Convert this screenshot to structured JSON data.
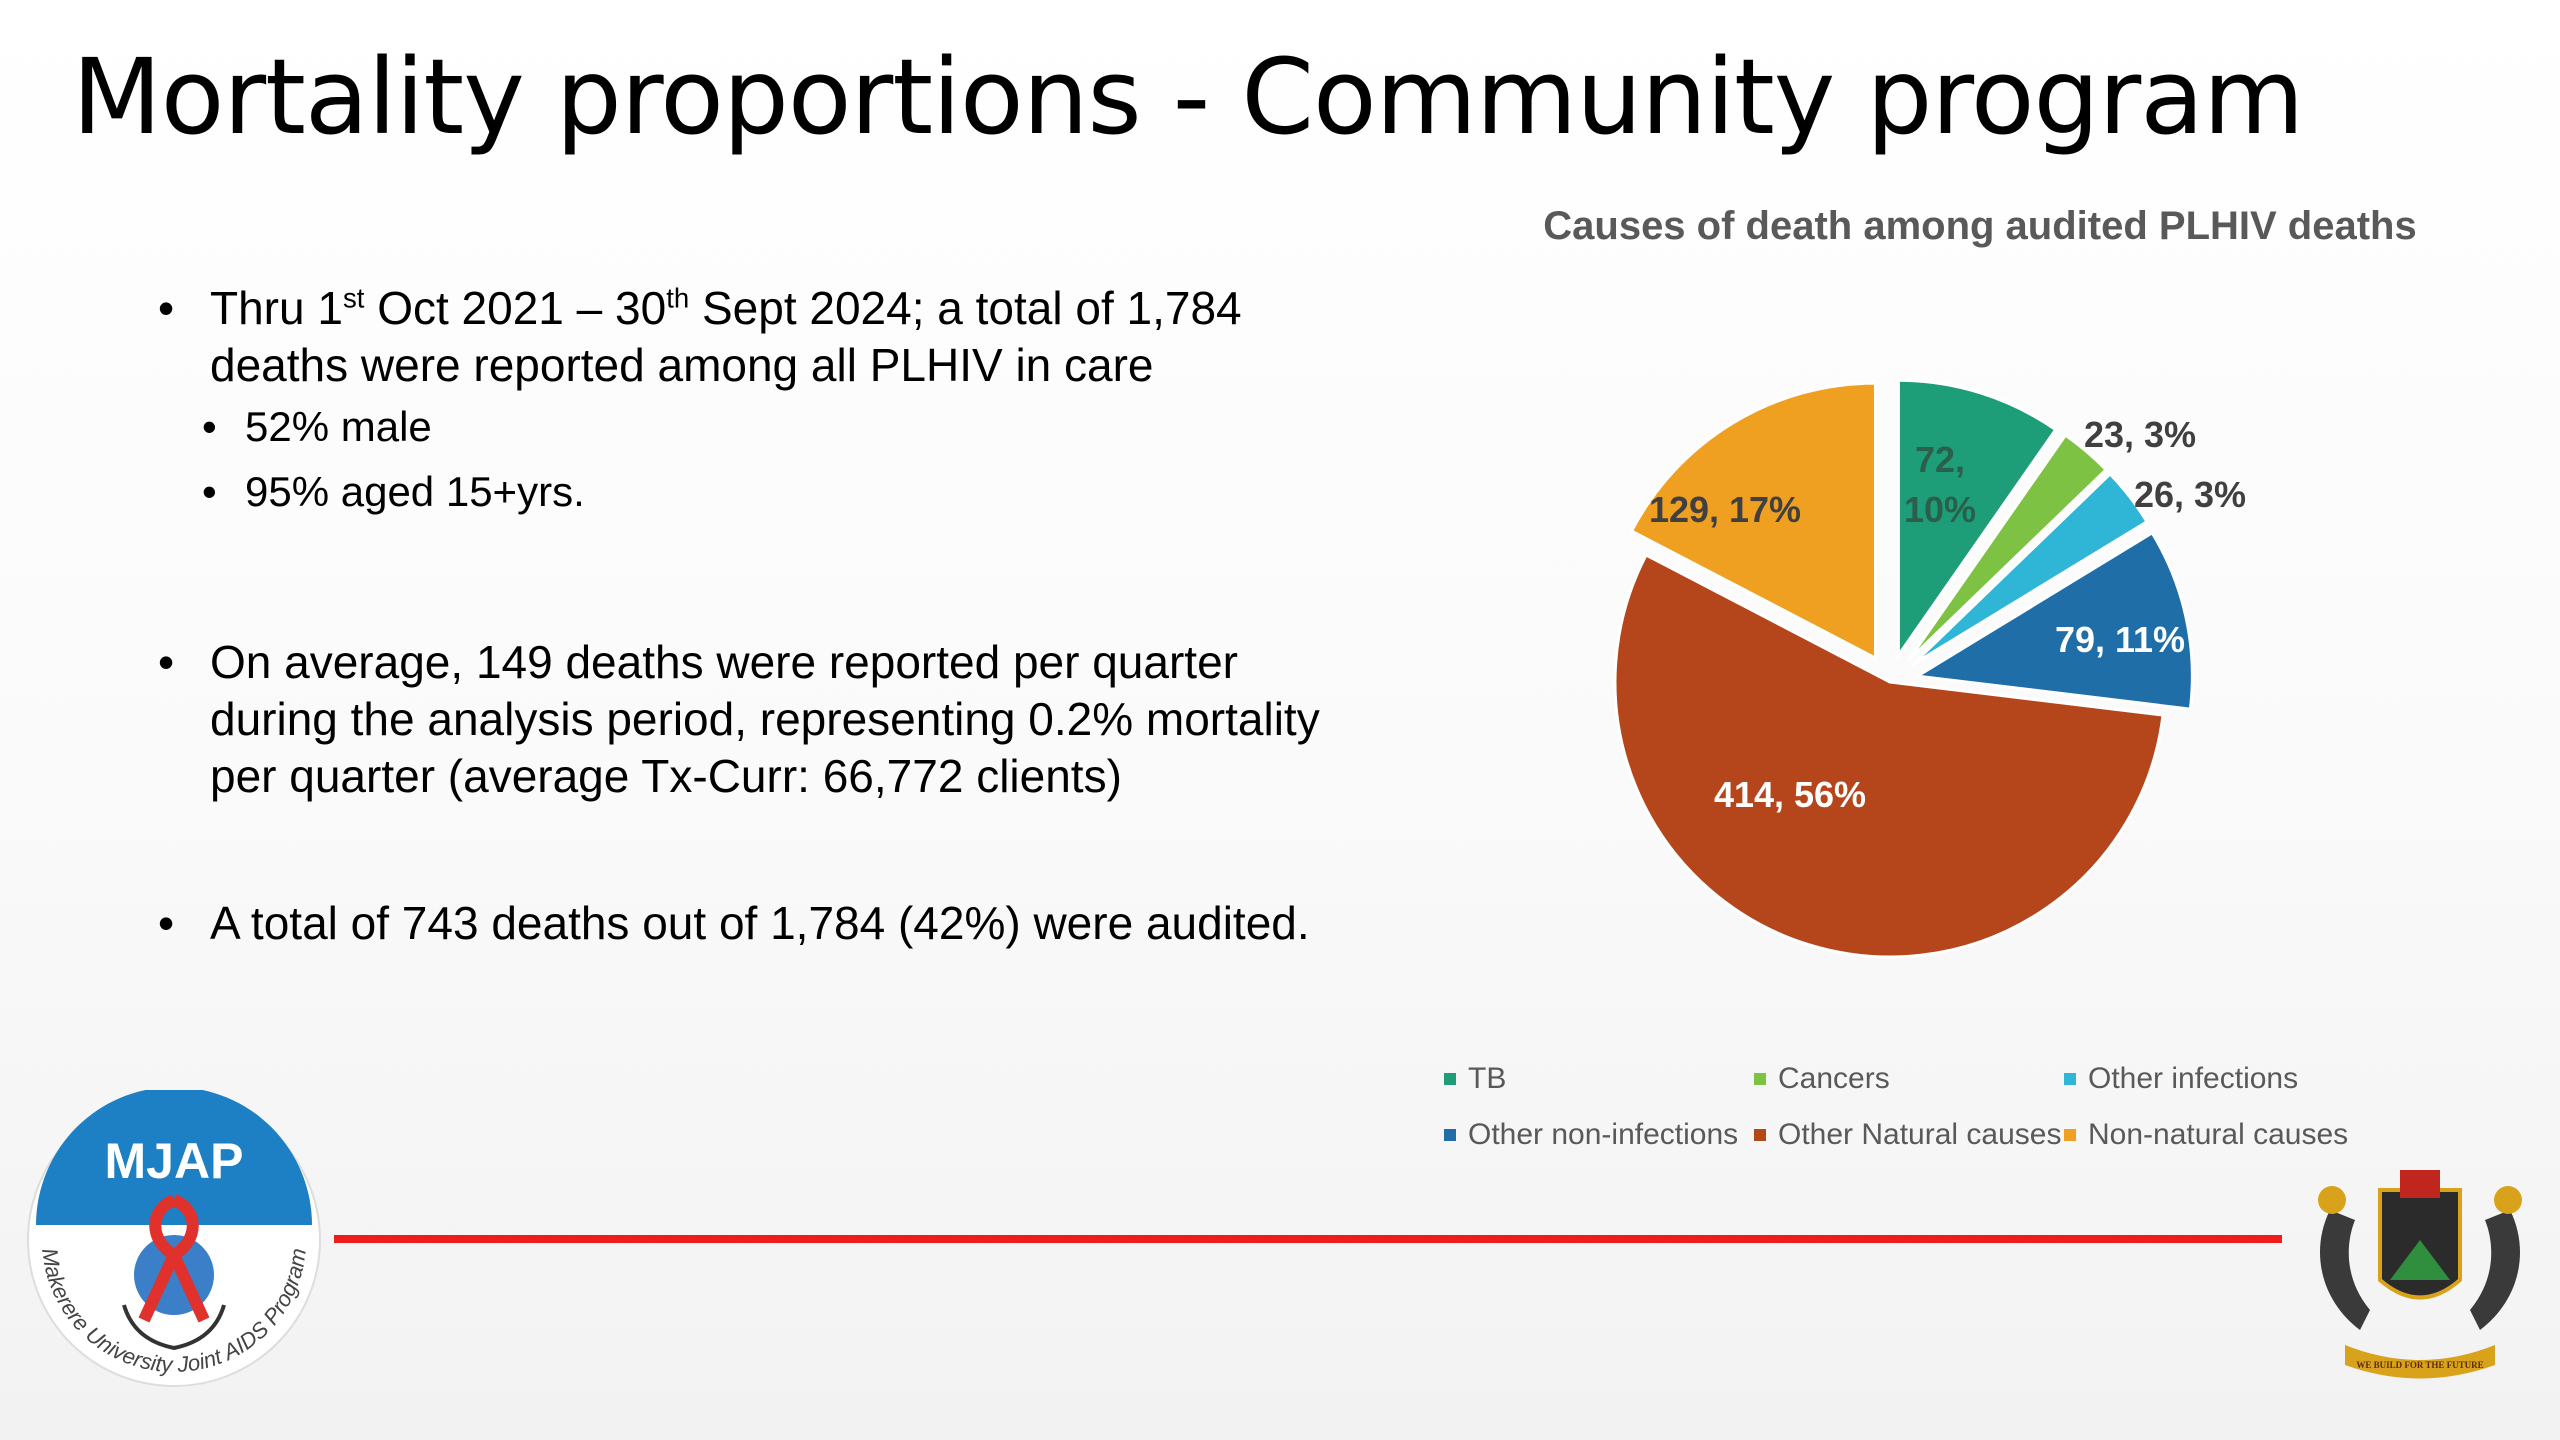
{
  "slide": {
    "title": "Mortality proportions - Community program",
    "bullets": {
      "b1_text_a": "Thru 1",
      "b1_sup_a": "st",
      "b1_text_b": " Oct 2021 – 30",
      "b1_sup_b": "th",
      "b1_text_c": " Sept 2024; a total of 1,784 deaths were reported among all PLHIV in care",
      "sub1": "52% male",
      "sub2": "95% aged 15+yrs.",
      "b2": "On average, 149 deaths were reported per quarter during the analysis period, representing 0.2% mortality per quarter (average Tx-Curr: 66,772 clients)",
      "b3": "A total of 743 deaths out of 1,784 (42%) were audited."
    }
  },
  "logos": {
    "mjap_text": "MJAP",
    "mjap_ring": "Makerere University Joint AIDS Program",
    "crest_motto": "WE BUILD FOR THE FUTURE"
  },
  "chart_data": {
    "type": "pie",
    "title": "Causes of death among audited PLHIV deaths",
    "legend_position": "bottom",
    "slices": [
      {
        "name": "TB",
        "value": 72,
        "percent": "10%",
        "label": "72, 10%",
        "color": "#1e9e78",
        "exploded": true
      },
      {
        "name": "Cancers",
        "value": 23,
        "percent": "3%",
        "label": "23, 3%",
        "color": "#7dc242",
        "exploded": true
      },
      {
        "name": "Other  infections",
        "value": 26,
        "percent": "3%",
        "label": "26, 3%",
        "color": "#2fb5d6",
        "exploded": true
      },
      {
        "name": "Other non-infections",
        "value": 79,
        "percent": "11%",
        "label": "79, 11%",
        "color": "#1f6ea8",
        "exploded": true
      },
      {
        "name": "Other Natural causes",
        "value": 414,
        "percent": "56%",
        "label": "414, 56%",
        "color": "#b5451b",
        "exploded": false
      },
      {
        "name": "Non-natural causes",
        "value": 129,
        "percent": "17%",
        "label": "129, 17%",
        "color": "#f0a020",
        "exploded": true
      }
    ]
  }
}
